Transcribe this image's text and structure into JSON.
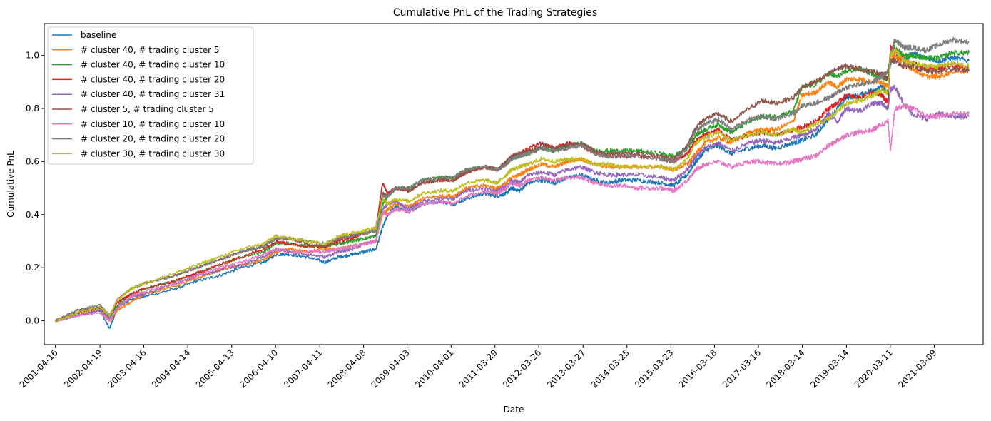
{
  "chart_data": {
    "type": "line",
    "title": "Cumulative PnL of the Trading Strategies",
    "xlabel": "Date",
    "ylabel": "Cumulative PnL",
    "xticks": [
      "2001-04-16",
      "2002-04-19",
      "2003-04-16",
      "2004-04-14",
      "2005-04-13",
      "2006-04-10",
      "2007-04-11",
      "2008-04-08",
      "2009-04-03",
      "2010-04-01",
      "2011-03-29",
      "2012-03-26",
      "2013-03-27",
      "2014-03-25",
      "2015-03-23",
      "2016-03-18",
      "2017-03-16",
      "2018-03-14",
      "2019-03-14",
      "2020-03-11",
      "2021-03-09"
    ],
    "yticks": [
      "0.0",
      "0.2",
      "0.4",
      "0.6",
      "0.8",
      "1.0"
    ],
    "ylim": [
      -0.09,
      1.12
    ],
    "xlim": [
      2001.04,
      2022.3
    ],
    "x_end": 2021.98,
    "legend_position": "upper left",
    "grid": false,
    "x": [
      2001.29,
      2001.8,
      2002.3,
      2002.52,
      2002.7,
      2003.0,
      2003.29,
      2004.0,
      2004.5,
      2005.0,
      2005.5,
      2006.0,
      2006.3,
      2006.6,
      2007.0,
      2007.4,
      2007.7,
      2008.0,
      2008.3,
      2008.55,
      2008.7,
      2008.82,
      2009.0,
      2009.3,
      2009.6,
      2010.0,
      2010.3,
      2010.6,
      2011.0,
      2011.3,
      2011.5,
      2011.62,
      2011.8,
      2012.0,
      2012.3,
      2012.6,
      2012.9,
      2013.2,
      2013.5,
      2013.8,
      2014.1,
      2014.5,
      2015.0,
      2015.3,
      2015.6,
      2015.8,
      2016.0,
      2016.3,
      2016.6,
      2017.0,
      2017.3,
      2017.6,
      2018.0,
      2018.2,
      2018.5,
      2018.8,
      2019.0,
      2019.2,
      2019.5,
      2019.8,
      2020.0,
      2020.15,
      2020.2,
      2020.3,
      2020.5,
      2020.7,
      2021.0,
      2021.3,
      2021.6,
      2021.98
    ],
    "series": [
      {
        "name": "baseline",
        "color": "#1f77b4",
        "values": [
          0.0,
          0.02,
          0.04,
          -0.03,
          0.05,
          0.08,
          0.09,
          0.12,
          0.15,
          0.17,
          0.2,
          0.22,
          0.25,
          0.25,
          0.24,
          0.22,
          0.24,
          0.25,
          0.26,
          0.27,
          0.35,
          0.4,
          0.43,
          0.41,
          0.44,
          0.45,
          0.44,
          0.46,
          0.48,
          0.47,
          0.48,
          0.5,
          0.49,
          0.52,
          0.53,
          0.52,
          0.54,
          0.55,
          0.53,
          0.52,
          0.53,
          0.53,
          0.52,
          0.51,
          0.55,
          0.6,
          0.64,
          0.66,
          0.63,
          0.65,
          0.66,
          0.65,
          0.67,
          0.68,
          0.7,
          0.76,
          0.8,
          0.84,
          0.85,
          0.87,
          0.88,
          0.86,
          0.97,
          1.0,
          0.98,
          1.01,
          0.99,
          0.98,
          0.99,
          0.98
        ]
      },
      {
        "name": "# cluster 40, # trading cluster 5",
        "color": "#ff7f0e",
        "values": [
          0.0,
          0.02,
          0.04,
          0.0,
          0.04,
          0.07,
          0.1,
          0.13,
          0.16,
          0.19,
          0.21,
          0.23,
          0.26,
          0.27,
          0.26,
          0.27,
          0.27,
          0.28,
          0.29,
          0.3,
          0.4,
          0.42,
          0.44,
          0.43,
          0.46,
          0.47,
          0.47,
          0.5,
          0.51,
          0.5,
          0.52,
          0.54,
          0.55,
          0.57,
          0.59,
          0.58,
          0.6,
          0.61,
          0.59,
          0.58,
          0.58,
          0.58,
          0.58,
          0.57,
          0.59,
          0.63,
          0.67,
          0.69,
          0.67,
          0.71,
          0.72,
          0.72,
          0.75,
          0.85,
          0.86,
          0.9,
          0.88,
          0.91,
          0.91,
          0.9,
          0.9,
          0.88,
          1.0,
          1.0,
          0.97,
          0.95,
          0.92,
          0.92,
          0.94,
          0.94
        ]
      },
      {
        "name": "# cluster 40, # trading cluster 10",
        "color": "#2ca02c",
        "values": [
          0.0,
          0.03,
          0.05,
          0.01,
          0.06,
          0.1,
          0.12,
          0.15,
          0.18,
          0.21,
          0.24,
          0.26,
          0.29,
          0.29,
          0.28,
          0.28,
          0.29,
          0.3,
          0.31,
          0.32,
          0.44,
          0.47,
          0.5,
          0.5,
          0.53,
          0.54,
          0.54,
          0.57,
          0.58,
          0.57,
          0.59,
          0.61,
          0.62,
          0.63,
          0.65,
          0.64,
          0.66,
          0.67,
          0.64,
          0.64,
          0.64,
          0.64,
          0.63,
          0.62,
          0.65,
          0.7,
          0.72,
          0.74,
          0.71,
          0.75,
          0.77,
          0.77,
          0.79,
          0.88,
          0.89,
          0.93,
          0.92,
          0.94,
          0.95,
          0.93,
          0.92,
          0.91,
          1.02,
          1.03,
          1.0,
          1.0,
          0.99,
          0.99,
          1.01,
          1.01
        ]
      },
      {
        "name": "# cluster 40, # trading cluster 20",
        "color": "#d62728",
        "values": [
          0.0,
          0.03,
          0.05,
          0.02,
          0.07,
          0.1,
          0.12,
          0.15,
          0.18,
          0.21,
          0.24,
          0.27,
          0.3,
          0.29,
          0.28,
          0.28,
          0.3,
          0.31,
          0.33,
          0.35,
          0.52,
          0.48,
          0.5,
          0.49,
          0.52,
          0.53,
          0.53,
          0.56,
          0.58,
          0.57,
          0.59,
          0.62,
          0.63,
          0.65,
          0.67,
          0.65,
          0.67,
          0.66,
          0.63,
          0.62,
          0.62,
          0.62,
          0.61,
          0.6,
          0.63,
          0.68,
          0.7,
          0.72,
          0.68,
          0.7,
          0.71,
          0.7,
          0.72,
          0.73,
          0.75,
          0.8,
          0.82,
          0.85,
          0.84,
          0.86,
          0.85,
          0.82,
          1.03,
          1.02,
          0.98,
          0.97,
          0.95,
          0.95,
          0.96,
          0.95
        ]
      },
      {
        "name": "# cluster 40, # trading cluster 31",
        "color": "#9467bd",
        "values": [
          0.0,
          0.02,
          0.04,
          0.01,
          0.05,
          0.09,
          0.1,
          0.14,
          0.17,
          0.19,
          0.21,
          0.24,
          0.27,
          0.26,
          0.25,
          0.24,
          0.26,
          0.27,
          0.29,
          0.3,
          0.42,
          0.44,
          0.45,
          0.42,
          0.45,
          0.46,
          0.46,
          0.49,
          0.5,
          0.49,
          0.51,
          0.53,
          0.52,
          0.55,
          0.56,
          0.55,
          0.57,
          0.58,
          0.56,
          0.55,
          0.55,
          0.55,
          0.54,
          0.53,
          0.57,
          0.62,
          0.65,
          0.67,
          0.64,
          0.67,
          0.68,
          0.67,
          0.69,
          0.7,
          0.72,
          0.78,
          0.75,
          0.8,
          0.79,
          0.82,
          0.82,
          0.8,
          0.87,
          0.88,
          0.82,
          0.78,
          0.76,
          0.78,
          0.77,
          0.77
        ]
      },
      {
        "name": "# cluster 5, # trading cluster 5",
        "color": "#8c564b",
        "values": [
          0.0,
          0.04,
          0.05,
          0.02,
          0.08,
          0.12,
          0.14,
          0.17,
          0.2,
          0.23,
          0.26,
          0.28,
          0.31,
          0.31,
          0.29,
          0.28,
          0.31,
          0.32,
          0.33,
          0.34,
          0.48,
          0.47,
          0.5,
          0.49,
          0.52,
          0.53,
          0.53,
          0.56,
          0.58,
          0.57,
          0.6,
          0.62,
          0.63,
          0.64,
          0.66,
          0.65,
          0.66,
          0.67,
          0.64,
          0.63,
          0.63,
          0.63,
          0.62,
          0.61,
          0.66,
          0.73,
          0.76,
          0.78,
          0.75,
          0.8,
          0.83,
          0.82,
          0.84,
          0.88,
          0.9,
          0.93,
          0.95,
          0.96,
          0.95,
          0.94,
          0.93,
          0.91,
          0.98,
          0.98,
          0.96,
          0.96,
          0.94,
          0.94,
          0.95,
          0.94
        ]
      },
      {
        "name": "# cluster 10, # trading cluster 10",
        "color": "#e377c2",
        "values": [
          0.0,
          0.02,
          0.03,
          0.0,
          0.05,
          0.09,
          0.11,
          0.14,
          0.17,
          0.2,
          0.22,
          0.25,
          0.27,
          0.26,
          0.26,
          0.26,
          0.27,
          0.28,
          0.29,
          0.3,
          0.41,
          0.4,
          0.42,
          0.41,
          0.44,
          0.45,
          0.44,
          0.47,
          0.49,
          0.48,
          0.5,
          0.52,
          0.51,
          0.53,
          0.54,
          0.53,
          0.54,
          0.54,
          0.52,
          0.51,
          0.51,
          0.5,
          0.5,
          0.49,
          0.53,
          0.57,
          0.59,
          0.6,
          0.58,
          0.6,
          0.6,
          0.59,
          0.6,
          0.61,
          0.62,
          0.66,
          0.68,
          0.7,
          0.71,
          0.72,
          0.74,
          0.75,
          0.64,
          0.8,
          0.81,
          0.8,
          0.77,
          0.77,
          0.78,
          0.78
        ]
      },
      {
        "name": "# cluster 20, # trading cluster 20",
        "color": "#7f7f7f",
        "values": [
          0.0,
          0.04,
          0.06,
          0.02,
          0.08,
          0.12,
          0.14,
          0.17,
          0.2,
          0.23,
          0.26,
          0.28,
          0.31,
          0.31,
          0.3,
          0.29,
          0.31,
          0.32,
          0.33,
          0.34,
          0.47,
          0.47,
          0.5,
          0.5,
          0.53,
          0.54,
          0.54,
          0.57,
          0.58,
          0.57,
          0.59,
          0.61,
          0.62,
          0.63,
          0.65,
          0.64,
          0.65,
          0.66,
          0.63,
          0.62,
          0.62,
          0.62,
          0.61,
          0.6,
          0.65,
          0.72,
          0.74,
          0.76,
          0.72,
          0.76,
          0.77,
          0.76,
          0.78,
          0.81,
          0.82,
          0.84,
          0.86,
          0.88,
          0.89,
          0.9,
          0.92,
          0.94,
          1.0,
          1.06,
          1.03,
          1.03,
          1.02,
          1.04,
          1.06,
          1.05
        ]
      },
      {
        "name": "# cluster 30, # trading cluster 30",
        "color": "#bcbd22",
        "values": [
          0.0,
          0.03,
          0.05,
          0.02,
          0.08,
          0.12,
          0.14,
          0.18,
          0.21,
          0.24,
          0.27,
          0.29,
          0.32,
          0.31,
          0.3,
          0.29,
          0.32,
          0.33,
          0.34,
          0.35,
          0.46,
          0.44,
          0.46,
          0.45,
          0.48,
          0.49,
          0.49,
          0.52,
          0.53,
          0.52,
          0.55,
          0.57,
          0.58,
          0.59,
          0.61,
          0.6,
          0.61,
          0.61,
          0.59,
          0.59,
          0.58,
          0.58,
          0.58,
          0.57,
          0.61,
          0.67,
          0.69,
          0.71,
          0.68,
          0.7,
          0.71,
          0.7,
          0.72,
          0.71,
          0.74,
          0.76,
          0.79,
          0.82,
          0.83,
          0.85,
          0.87,
          0.86,
          1.0,
          1.02,
          0.98,
          0.97,
          0.96,
          0.96,
          0.97,
          0.96
        ]
      }
    ]
  }
}
